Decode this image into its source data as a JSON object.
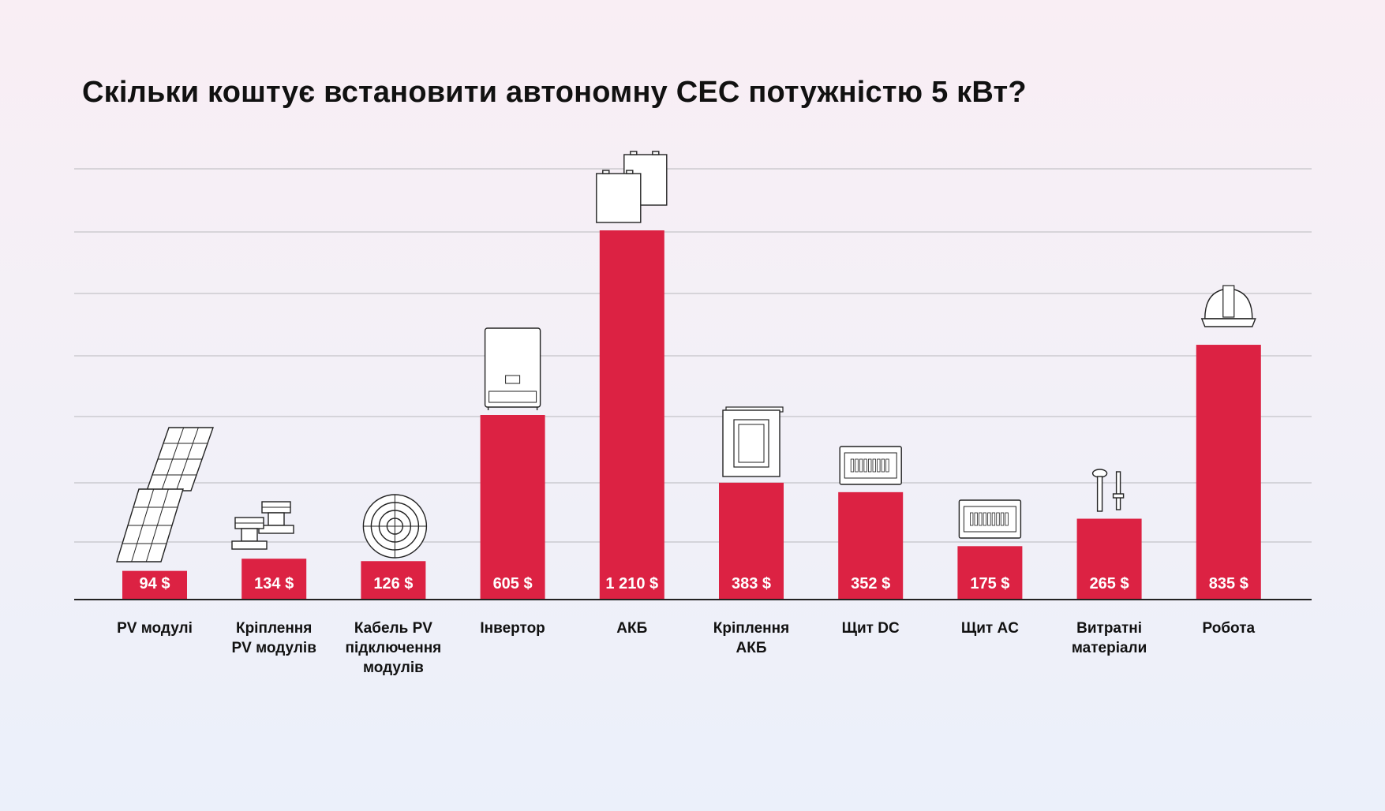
{
  "title": "Скільки коштує встановити автономну СЕС потужністю 5 кВт?",
  "colors": {
    "bar": "#dc2243",
    "grid": "#b8b8bc",
    "axis": "#222222",
    "text": "#111111"
  },
  "chart_data": {
    "type": "bar",
    "title": "Скільки коштує встановити автономну СЕС потужністю 5 кВт?",
    "xlabel": "",
    "ylabel": "",
    "grid": true,
    "legend": "none",
    "categories": [
      {
        "label": [
          "PV модулі"
        ],
        "icon": "solar-panels-icon"
      },
      {
        "label": [
          "Кріплення",
          "PV модулів"
        ],
        "icon": "mounting-clamps-icon"
      },
      {
        "label": [
          "Кабель PV",
          "підключення",
          "модулів"
        ],
        "icon": "cable-coil-icon"
      },
      {
        "label": [
          "Інвертор"
        ],
        "icon": "inverter-icon"
      },
      {
        "label": [
          "АКБ"
        ],
        "icon": "batteries-icon"
      },
      {
        "label": [
          "Кріплення",
          "АКБ"
        ],
        "icon": "battery-rack-icon"
      },
      {
        "label": [
          "Щит DC"
        ],
        "icon": "dc-panel-icon"
      },
      {
        "label": [
          "Щит AC"
        ],
        "icon": "ac-panel-icon"
      },
      {
        "label": [
          "Витратні",
          "матеріали"
        ],
        "icon": "bolts-icon"
      },
      {
        "label": [
          "Робота"
        ],
        "icon": "hard-hat-icon"
      }
    ],
    "values": [
      94,
      134,
      126,
      605,
      1210,
      383,
      352,
      175,
      265,
      835
    ],
    "value_labels": [
      "94 $",
      "134 $",
      "126 $",
      "605 $",
      "1 210 $",
      "383 $",
      "352 $",
      "175 $",
      "265 $",
      "835 $"
    ],
    "ylim": [
      0,
      1420
    ]
  }
}
